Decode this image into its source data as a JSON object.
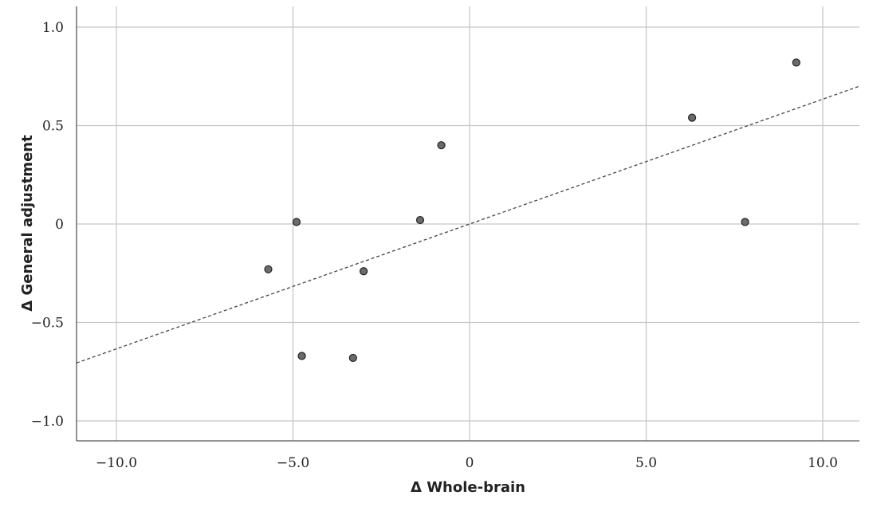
{
  "chart_data": {
    "type": "scatter",
    "xlabel": "Δ Whole-brain",
    "ylabel": "Δ General adjustment",
    "xlim": [
      -11.0,
      11.0
    ],
    "ylim": [
      -1.11,
      1.11
    ],
    "xticks": [
      -10,
      -5,
      0,
      5,
      10
    ],
    "xtick_labels": [
      "−10.0",
      "−5.0",
      "0",
      "5.0",
      "10.0"
    ],
    "yticks": [
      -1,
      -0.5,
      0,
      0.5,
      1
    ],
    "ytick_labels": [
      "−1.0",
      "−0.5",
      "0",
      "0.5",
      "1.0"
    ],
    "grid": true,
    "points": [
      {
        "x": -5.7,
        "y": -0.23
      },
      {
        "x": -4.9,
        "y": 0.01
      },
      {
        "x": -4.75,
        "y": -0.67
      },
      {
        "x": -3.3,
        "y": -0.68
      },
      {
        "x": -3.0,
        "y": -0.24
      },
      {
        "x": -1.4,
        "y": 0.02
      },
      {
        "x": -0.8,
        "y": 0.4
      },
      {
        "x": 6.3,
        "y": 0.54
      },
      {
        "x": 7.8,
        "y": 0.01
      },
      {
        "x": 9.25,
        "y": 0.82
      }
    ],
    "fit_line": {
      "slope": 0.0634,
      "intercept": 0.0
    }
  }
}
